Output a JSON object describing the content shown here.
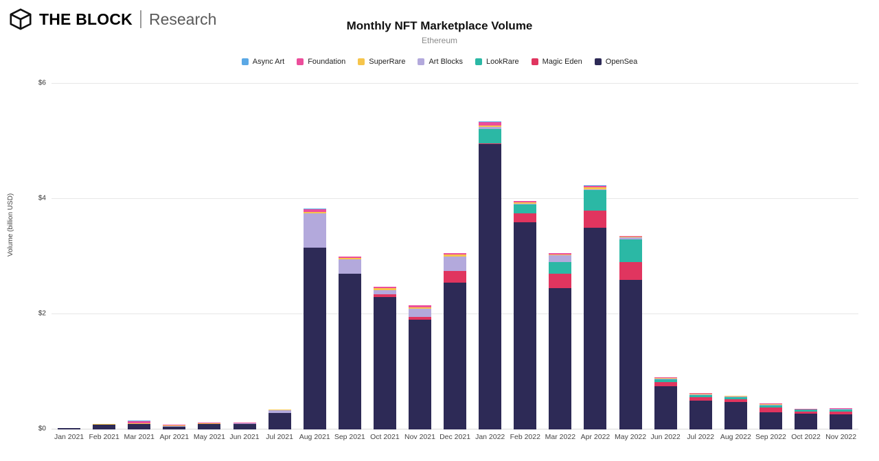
{
  "header": {
    "brand": "THE BLOCK",
    "sub_brand": "Research"
  },
  "chart": {
    "title": "Monthly NFT Marketplace Volume",
    "subtitle": "Ethereum",
    "y_axis_label": "Volume (billion USD)"
  },
  "chart_data": {
    "type": "bar",
    "stacked": true,
    "title": "Monthly NFT Marketplace Volume",
    "subtitle": "Ethereum",
    "xlabel": "",
    "ylabel": "Volume (billion USD)",
    "ylim": [
      0,
      6
    ],
    "grid": "horizontal",
    "legend_position": "top",
    "yticks": [
      {
        "value": 0,
        "label": "$0"
      },
      {
        "value": 2,
        "label": "$2"
      },
      {
        "value": 4,
        "label": "$4"
      },
      {
        "value": 6,
        "label": "$6"
      }
    ],
    "categories": [
      "Jan 2021",
      "Feb 2021",
      "Mar 2021",
      "Apr 2021",
      "May 2021",
      "Jun 2021",
      "Jul 2021",
      "Aug 2021",
      "Sep 2021",
      "Oct 2021",
      "Nov 2021",
      "Dec 2021",
      "Jan 2022",
      "Feb 2022",
      "Mar 2022",
      "Apr 2022",
      "May 2022",
      "Jun 2022",
      "Jul 2022",
      "Aug 2022",
      "Sep 2022",
      "Oct 2022",
      "Nov 2022"
    ],
    "series": [
      {
        "name": "Async Art",
        "color": "#5BA8E5",
        "values": [
          0,
          0,
          0.01,
          0,
          0,
          0,
          0,
          0.01,
          0,
          0,
          0,
          0,
          0.01,
          0,
          0,
          0.01,
          0,
          0,
          0,
          0,
          0,
          0,
          0
        ]
      },
      {
        "name": "Foundation",
        "color": "#EC4E9B",
        "values": [
          0.01,
          0.01,
          0.03,
          0.01,
          0.01,
          0.01,
          0.01,
          0.05,
          0.02,
          0.03,
          0.03,
          0.02,
          0.06,
          0.03,
          0.02,
          0.03,
          0.02,
          0.01,
          0.01,
          0.01,
          0.01,
          0.01,
          0.01
        ]
      },
      {
        "name": "SuperRare",
        "color": "#F6C54C",
        "values": [
          0,
          0.01,
          0.01,
          0.01,
          0.01,
          0,
          0.01,
          0.02,
          0.03,
          0.03,
          0.02,
          0.04,
          0.02,
          0.02,
          0.02,
          0.03,
          0.01,
          0.01,
          0.01,
          0.01,
          0.01,
          0,
          0
        ]
      },
      {
        "name": "Art Blocks",
        "color": "#B3A9DC",
        "values": [
          0,
          0,
          0,
          0.01,
          0.01,
          0.01,
          0.05,
          0.6,
          0.25,
          0.07,
          0.15,
          0.25,
          0.03,
          0.02,
          0.12,
          0.02,
          0.03,
          0.01,
          0.01,
          0.01,
          0.01,
          0.01,
          0.01
        ]
      },
      {
        "name": "LookRare",
        "color": "#2BB8A5",
        "values": [
          0,
          0,
          0,
          0,
          0,
          0,
          0,
          0,
          0,
          0,
          0,
          0,
          0.25,
          0.15,
          0.2,
          0.35,
          0.4,
          0.05,
          0.04,
          0.03,
          0.04,
          0.03,
          0.04
        ]
      },
      {
        "name": "Magic Eden",
        "color": "#E0355F",
        "values": [
          0,
          0,
          0,
          0,
          0,
          0,
          0,
          0,
          0,
          0.05,
          0.05,
          0.2,
          0.02,
          0.15,
          0.25,
          0.3,
          0.3,
          0.07,
          0.06,
          0.05,
          0.08,
          0.04,
          0.05
        ]
      },
      {
        "name": "OpenSea",
        "color": "#2D2A56",
        "values": [
          0.02,
          0.08,
          0.1,
          0.05,
          0.09,
          0.1,
          0.28,
          3.15,
          2.7,
          2.3,
          1.9,
          2.55,
          4.95,
          3.6,
          2.45,
          3.5,
          2.6,
          0.75,
          0.5,
          0.48,
          0.3,
          0.27,
          0.26
        ]
      }
    ]
  }
}
